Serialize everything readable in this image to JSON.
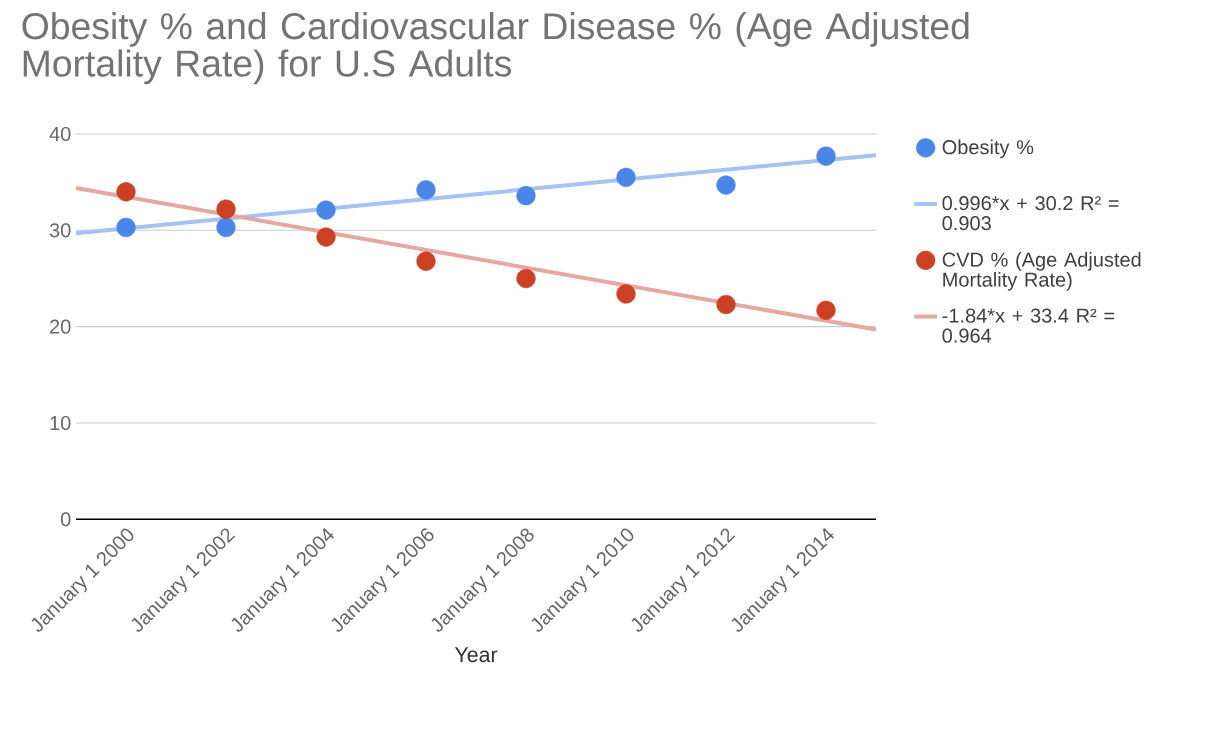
{
  "chart_data": {
    "type": "scatter",
    "title": "Obesity % and Cardiovascular Disease % (Age Adjusted Mortality Rate) for U.S Adults",
    "xlabel": "Year",
    "x": [
      "2000-01-01",
      "2002-01-01",
      "2004-01-01",
      "2006-01-01",
      "2008-01-01",
      "2010-01-01",
      "2012-01-01",
      "2014-01-01"
    ],
    "xlim": [
      "1999-01-01",
      "2015-01-01"
    ],
    "xticks": [
      {
        "value": "2000-01-01",
        "label": "January 1 2000"
      },
      {
        "value": "2002-01-01",
        "label": "January 1 2002"
      },
      {
        "value": "2004-01-01",
        "label": "January 1 2004"
      },
      {
        "value": "2006-01-01",
        "label": "January 1 2006"
      },
      {
        "value": "2008-01-01",
        "label": "January 1 2008"
      },
      {
        "value": "2010-01-01",
        "label": "January 1 2010"
      },
      {
        "value": "2012-01-01",
        "label": "January 1 2012"
      },
      {
        "value": "2014-01-01",
        "label": "January 1 2014"
      }
    ],
    "ylim": [
      0,
      40
    ],
    "yticks": [
      0,
      10,
      20,
      30,
      40
    ],
    "grid": "y",
    "legend": "right",
    "marker": "circle",
    "series": [
      {
        "name": "Obesity %",
        "color": "#4a86e8",
        "values": [
          30.3,
          30.3,
          32.1,
          34.2,
          33.6,
          35.5,
          34.7,
          37.7
        ]
      },
      {
        "name": "0.996*x + 30.2 R² = 0.903",
        "type": "line",
        "marker": "none",
        "color": "#a4c2f4",
        "x": [
          "1999-01-01",
          "2015-01-01"
        ],
        "values": [
          29.7,
          37.8
        ]
      },
      {
        "name": "CVD % (Age Adjusted Mortality Rate)",
        "color": "#cc4125",
        "values": [
          34.0,
          32.2,
          29.3,
          26.8,
          25.0,
          23.4,
          22.3,
          21.7
        ]
      },
      {
        "name": "-1.84*x + 33.4 R² = 0.964",
        "type": "line",
        "marker": "none",
        "color": "#e6a7a0",
        "x": [
          "1999-01-01",
          "2015-01-01"
        ],
        "values": [
          34.4,
          19.7
        ]
      }
    ]
  }
}
